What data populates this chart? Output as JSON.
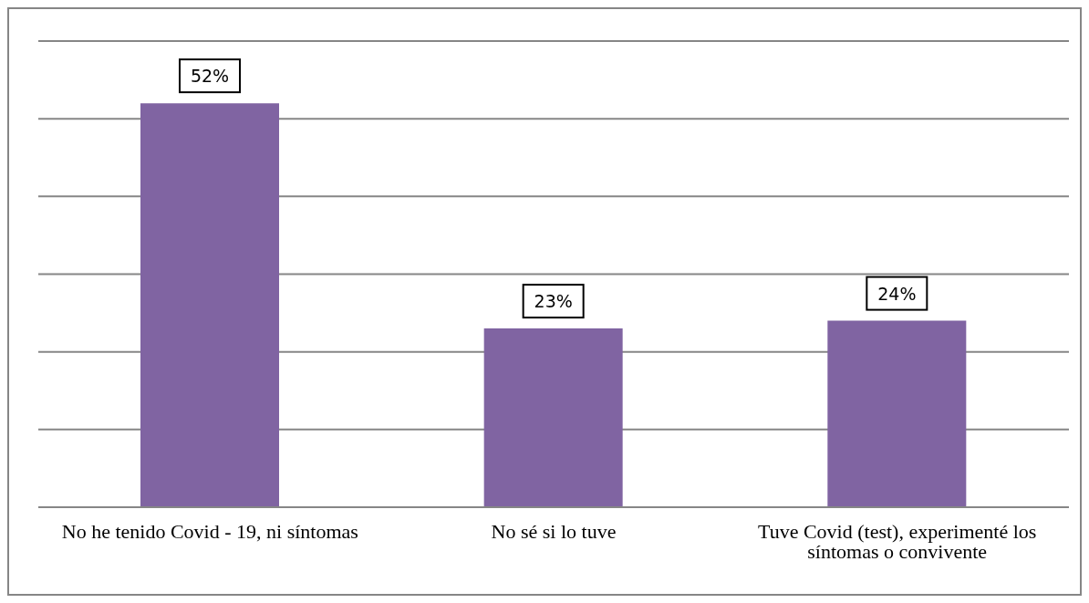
{
  "chart_data": {
    "type": "bar",
    "categories": [
      "No he tenido Covid - 19, ni síntomas",
      "No sé si lo tuve",
      "Tuve Covid (test), experimenté los síntomas o convivente"
    ],
    "values": [
      52,
      23,
      24
    ],
    "color": "#8064a2",
    "value_labels": [
      "52%",
      "23%",
      "24%"
    ],
    "ylim": [
      0,
      60
    ],
    "grid": "y",
    "tick_labels": "x",
    "legend": false
  }
}
